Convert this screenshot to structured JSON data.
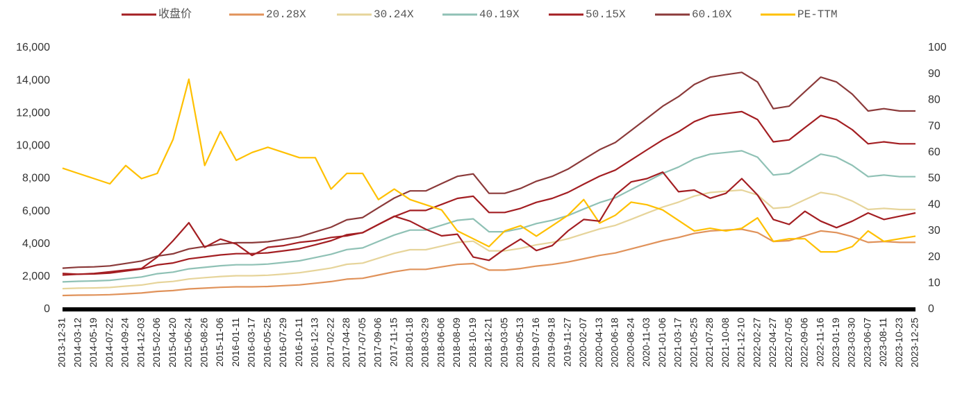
{
  "chart_data": {
    "type": "line",
    "categories": [
      "2013-12-31",
      "2014-03-12",
      "2014-05-19",
      "2014-07-22",
      "2014-09-24",
      "2014-12-03",
      "2015-02-06",
      "2015-04-20",
      "2015-06-24",
      "2015-08-26",
      "2015-11-06",
      "2016-01-11",
      "2016-03-17",
      "2016-05-25",
      "2016-07-29",
      "2016-10-11",
      "2016-12-13",
      "2017-02-22",
      "2017-04-28",
      "2017-07-05",
      "2017-09-06",
      "2017-11-15",
      "2018-01-18",
      "2018-03-29",
      "2018-06-06",
      "2018-08-09",
      "2018-10-19",
      "2018-12-21",
      "2019-03-05",
      "2019-05-13",
      "2019-07-16",
      "2019-09-18",
      "2019-11-27",
      "2020-02-07",
      "2020-04-13",
      "2020-06-18",
      "2020-08-24",
      "2020-11-03",
      "2021-01-06",
      "2021-03-17",
      "2021-05-25",
      "2021-07-28",
      "2021-10-08",
      "2021-12-10",
      "2022-02-27",
      "2022-04-27",
      "2022-07-05",
      "2022-09-06",
      "2022-11-16",
      "2023-01-19",
      "2023-03-30",
      "2023-06-07",
      "2023-08-11",
      "2023-10-23",
      "2023-12-25"
    ],
    "series": [
      {
        "name": "收盘价",
        "color": "#a31e22",
        "values": [
          2200,
          2150,
          2200,
          2300,
          2400,
          2500,
          3200,
          4200,
          5300,
          3800,
          4300,
          4000,
          3300,
          3800,
          3900,
          4100,
          4200,
          4400,
          4500,
          4700,
          5200,
          5700,
          5400,
          4900,
          4500,
          4600,
          3200,
          3000,
          3700,
          4300,
          3600,
          3900,
          4800,
          5500,
          5400,
          7000,
          7800,
          8000,
          8400,
          7200,
          7300,
          6800,
          7100,
          8000,
          7000,
          5500,
          5200,
          6000,
          5400,
          5000,
          5400,
          5900,
          5500,
          5700,
          5900
        ]
      },
      {
        "name": "20.28X",
        "color": "#e0925a",
        "values": [
          850,
          870,
          880,
          900,
          950,
          1000,
          1100,
          1150,
          1250,
          1300,
          1350,
          1380,
          1380,
          1400,
          1450,
          1500,
          1600,
          1700,
          1850,
          1900,
          2100,
          2300,
          2450,
          2450,
          2600,
          2750,
          2800,
          2400,
          2400,
          2500,
          2650,
          2750,
          2900,
          3100,
          3300,
          3450,
          3700,
          3950,
          4200,
          4400,
          4650,
          4800,
          4850,
          4900,
          4700,
          4150,
          4200,
          4500,
          4800,
          4700,
          4450,
          4100,
          4150,
          4100,
          4100
        ]
      },
      {
        "name": "30.24X",
        "color": "#e6d49a",
        "values": [
          1270,
          1300,
          1310,
          1340,
          1420,
          1490,
          1640,
          1710,
          1860,
          1940,
          2010,
          2060,
          2060,
          2090,
          2160,
          2240,
          2380,
          2530,
          2760,
          2830,
          3130,
          3430,
          3650,
          3650,
          3870,
          4100,
          4170,
          3580,
          3580,
          3730,
          3950,
          4100,
          4320,
          4620,
          4920,
          5140,
          5510,
          5890,
          6260,
          6560,
          6930,
          7150,
          7230,
          7300,
          7000,
          6180,
          6260,
          6710,
          7150,
          7000,
          6630,
          6110,
          6180,
          6110,
          6110
        ]
      },
      {
        "name": "40.19X",
        "color": "#8fc1b5",
        "values": [
          1680,
          1720,
          1740,
          1780,
          1880,
          1980,
          2180,
          2280,
          2480,
          2570,
          2670,
          2730,
          2730,
          2770,
          2870,
          2970,
          3170,
          3370,
          3660,
          3760,
          4160,
          4550,
          4850,
          4850,
          5150,
          5450,
          5540,
          4750,
          4750,
          4950,
          5250,
          5450,
          5740,
          6140,
          6530,
          6830,
          7330,
          7820,
          8320,
          8710,
          9210,
          9500,
          9600,
          9700,
          9310,
          8220,
          8320,
          8910,
          9500,
          9310,
          8810,
          8120,
          8220,
          8120,
          8120
        ]
      },
      {
        "name": "50.15X",
        "color": "#a31e22",
        "values": [
          2100,
          2150,
          2170,
          2220,
          2350,
          2470,
          2720,
          2840,
          3090,
          3210,
          3330,
          3410,
          3410,
          3460,
          3580,
          3710,
          3950,
          4200,
          4570,
          4690,
          5190,
          5680,
          6050,
          6050,
          6420,
          6790,
          6920,
          5930,
          5930,
          6180,
          6550,
          6790,
          7160,
          7660,
          8150,
          8520,
          9140,
          9760,
          10370,
          10870,
          11490,
          11860,
          11980,
          12100,
          11610,
          10250,
          10370,
          11120,
          11860,
          11610,
          10990,
          10130,
          10250,
          10130,
          10130
        ]
      },
      {
        "name": "60.10X",
        "color": "#8b3a3a",
        "values": [
          2520,
          2580,
          2600,
          2660,
          2810,
          2960,
          3260,
          3400,
          3700,
          3850,
          4000,
          4080,
          4080,
          4140,
          4290,
          4440,
          4740,
          5030,
          5480,
          5620,
          6220,
          6810,
          7250,
          7250,
          7700,
          8140,
          8290,
          7100,
          7100,
          7400,
          7840,
          8140,
          8580,
          9180,
          9770,
          10210,
          10950,
          11690,
          12430,
          13020,
          13760,
          14210,
          14360,
          14500,
          13910,
          12280,
          12430,
          13320,
          14210,
          13910,
          13170,
          12140,
          12280,
          12140,
          12140
        ]
      },
      {
        "name": "PE-TTM",
        "color": "#ffc000",
        "axis": "y2",
        "values": [
          54,
          52,
          50,
          48,
          55,
          50,
          52,
          65,
          88,
          55,
          68,
          57,
          60,
          62,
          60,
          58,
          58,
          46,
          52,
          52,
          42,
          46,
          42,
          40,
          38,
          30,
          27,
          24,
          30,
          32,
          28,
          32,
          36,
          42,
          33,
          36,
          41,
          40,
          38,
          34,
          30,
          31,
          30,
          31,
          35,
          26,
          27,
          27,
          22,
          22,
          24,
          30,
          26,
          27,
          28
        ]
      }
    ],
    "ylim": [
      0,
      16000
    ],
    "yticks": [
      0,
      {
        "value": 2000,
        "label": "2,000"
      },
      {
        "value": 4000,
        "label": "4,000"
      },
      {
        "value": 6000,
        "label": "6,000"
      },
      {
        "value": 8000,
        "label": "8,000"
      },
      {
        "value": 10000,
        "label": "10,000"
      },
      {
        "value": 12000,
        "label": "12,000"
      },
      {
        "value": 14000,
        "label": "14,000"
      },
      {
        "value": 16000,
        "label": "16,000"
      }
    ],
    "y2lim": [
      0,
      100
    ],
    "y2ticks": [
      0,
      10,
      20,
      30,
      40,
      50,
      60,
      70,
      80,
      90,
      100
    ],
    "legend": "top"
  }
}
